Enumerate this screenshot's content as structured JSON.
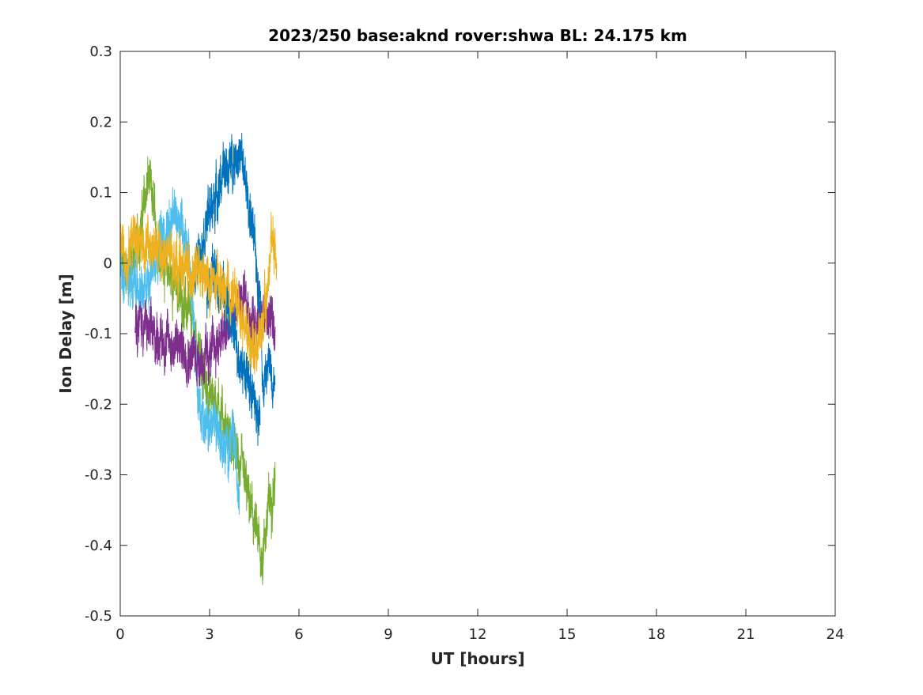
{
  "chart_data": {
    "type": "line",
    "title": "2023/250 base:aknd rover:shwa BL: 24.175 km",
    "xlabel": "UT [hours]",
    "ylabel": "Ion Delay [m]",
    "xlim": [
      0,
      24
    ],
    "ylim": [
      -0.5,
      0.3
    ],
    "xticks": [
      0,
      3,
      6,
      9,
      12,
      15,
      18,
      21,
      24
    ],
    "yticks": [
      -0.5,
      -0.4,
      -0.3,
      -0.2,
      -0.1,
      0,
      0.1,
      0.2,
      0.3
    ],
    "xtick_labels": [
      "0",
      "3",
      "6",
      "9",
      "12",
      "15",
      "18",
      "21",
      "24"
    ],
    "ytick_labels": [
      "-0.5",
      "-0.4",
      "-0.3",
      "-0.2",
      "-0.1",
      "0",
      "0.1",
      "0.2",
      "0.3"
    ],
    "grid": false,
    "box": true,
    "noise_amplitude": 0.028,
    "series": [
      {
        "color": "#77AC30",
        "x": [
          0,
          0.3,
          0.6,
          0.95,
          1.3,
          1.7,
          2.1,
          2.5,
          2.9,
          3.3,
          3.7,
          4.1,
          4.5,
          4.75,
          5.0,
          5.2
        ],
        "values": [
          0.0,
          -0.01,
          0.03,
          0.12,
          0.02,
          -0.02,
          -0.05,
          -0.1,
          -0.18,
          -0.2,
          -0.25,
          -0.3,
          -0.37,
          -0.42,
          -0.34,
          -0.31
        ]
      },
      {
        "color": "#4DBEEE",
        "x": [
          0,
          0.4,
          0.8,
          1.2,
          1.6,
          2.0,
          2.3,
          2.6,
          2.9,
          3.2,
          3.5,
          3.8,
          4.0
        ],
        "values": [
          0.0,
          -0.03,
          -0.05,
          0.02,
          0.05,
          0.07,
          0.02,
          -0.18,
          -0.24,
          -0.22,
          -0.27,
          -0.25,
          -0.32
        ]
      },
      {
        "color": "#7E2F8E",
        "x": [
          0.5,
          1.0,
          1.5,
          2.0,
          2.5,
          2.9,
          3.3,
          3.7,
          4.0,
          4.4,
          4.8,
          5.2
        ],
        "values": [
          -0.07,
          -0.1,
          -0.11,
          -0.12,
          -0.13,
          -0.14,
          -0.11,
          -0.09,
          -0.05,
          -0.08,
          -0.07,
          -0.09
        ]
      },
      {
        "color": "#0072BD",
        "x": [
          2.5,
          2.8,
          3.1,
          3.4,
          3.7,
          3.9,
          4.1,
          4.4,
          4.7,
          4.8,
          5.0,
          5.2
        ],
        "values": [
          -0.02,
          0.05,
          0.08,
          0.12,
          0.14,
          0.16,
          0.14,
          0.06,
          -0.05,
          -0.18,
          -0.14,
          -0.17
        ]
      },
      {
        "color": "#0072BD",
        "x": [
          2.9,
          3.2,
          3.5,
          3.8,
          4.1,
          4.4,
          4.7
        ],
        "values": [
          -0.03,
          -0.01,
          -0.05,
          -0.1,
          -0.14,
          -0.18,
          -0.23
        ]
      },
      {
        "color": "#EDB120",
        "x": [
          0,
          0.2,
          0.45,
          0.7,
          3.9,
          4.1,
          4.3,
          4.5,
          4.7,
          4.9,
          5.1,
          5.25
        ],
        "values": [
          0.04,
          0.0,
          0.05,
          0.03,
          -0.05,
          -0.08,
          -0.1,
          -0.12,
          -0.1,
          -0.06,
          0.05,
          0.0
        ]
      }
    ]
  }
}
